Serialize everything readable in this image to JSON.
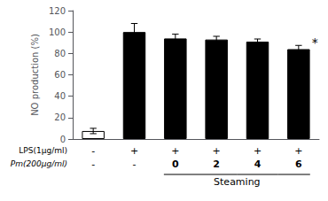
{
  "chart_data": {
    "type": "bar",
    "categories": [
      null,
      null,
      null,
      null,
      null,
      null
    ],
    "values": [
      7.5,
      100,
      94,
      93,
      91,
      84
    ],
    "errors": [
      2.5,
      8,
      4,
      3,
      2.5,
      3.5
    ],
    "colors": [
      "white",
      "black",
      "black",
      "black",
      "black",
      "black"
    ],
    "ylabel": "NO production (%)",
    "ylim": [
      0,
      120
    ],
    "yticks": [
      0,
      20,
      40,
      60,
      80,
      100,
      120
    ],
    "grid": false,
    "significance": [
      null,
      null,
      null,
      null,
      null,
      "*"
    ],
    "rows": [
      {
        "label": "LPS(1μg/ml)",
        "values": [
          "-",
          "+",
          "+",
          "+",
          "+",
          "+"
        ]
      },
      {
        "label": "Pm(200μg/ml)",
        "values": [
          "-",
          "-",
          "0",
          "2",
          "4",
          "6"
        ]
      }
    ],
    "bracket": {
      "label": "Steaming",
      "bars": [
        2,
        3,
        4,
        5
      ]
    }
  }
}
